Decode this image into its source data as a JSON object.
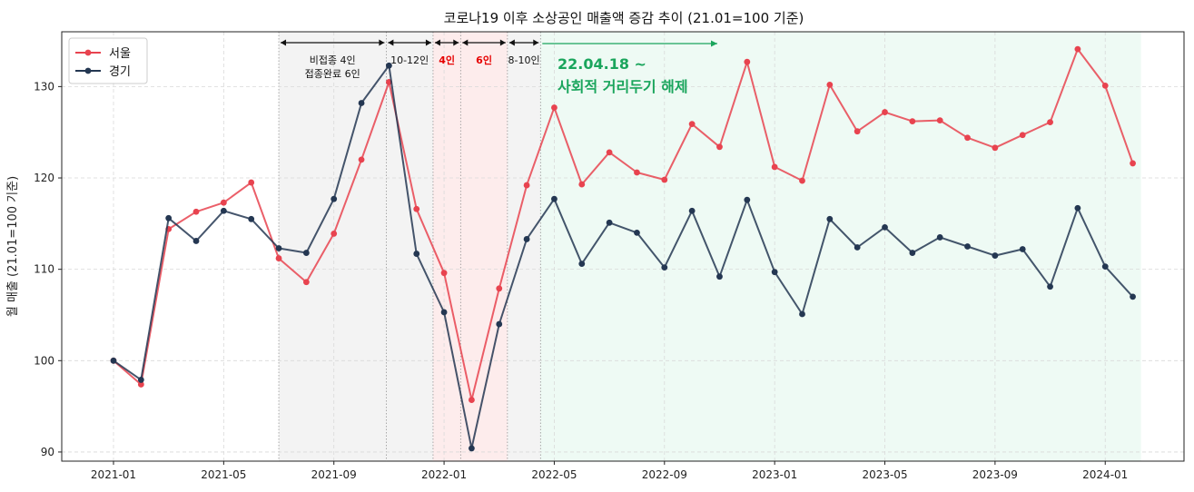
{
  "chart_data": {
    "type": "line",
    "title": "코로나19 이후 소상공인 매출액 증감 추이 (21.01=100 기준)",
    "xlabel": "",
    "ylabel": "월 매출 (21.01=100 기준)",
    "ylim": [
      89,
      136
    ],
    "yticks": [
      90,
      100,
      110,
      120,
      130
    ],
    "xticks": [
      "2021-01",
      "2021-05",
      "2021-09",
      "2022-01",
      "2022-05",
      "2022-09",
      "2023-01",
      "2023-05",
      "2023-09",
      "2024-01"
    ],
    "grid": true,
    "legend_position": "top-left",
    "x": [
      "2021-01",
      "2021-02",
      "2021-03",
      "2021-04",
      "2021-05",
      "2021-06",
      "2021-07",
      "2021-08",
      "2021-09",
      "2021-10",
      "2021-11",
      "2021-12",
      "2022-01",
      "2022-02",
      "2022-03",
      "2022-04",
      "2022-05",
      "2022-06",
      "2022-07",
      "2022-08",
      "2022-09",
      "2022-10",
      "2022-11",
      "2022-12",
      "2023-01",
      "2023-02",
      "2023-03",
      "2023-04",
      "2023-05",
      "2023-06",
      "2023-07",
      "2023-08",
      "2023-09",
      "2023-10",
      "2023-11",
      "2023-12",
      "2024-01",
      "2024-02"
    ],
    "series": [
      {
        "name": "서울",
        "color": "#e8434f",
        "values": [
          100,
          97.4,
          114.4,
          116.3,
          117.3,
          119.5,
          111.2,
          108.6,
          113.9,
          122.0,
          130.5,
          116.6,
          109.6,
          95.7,
          107.9,
          119.2,
          127.7,
          119.3,
          122.8,
          120.6,
          119.8,
          125.9,
          123.4,
          132.7,
          121.2,
          119.7,
          130.2,
          125.1,
          127.2,
          126.2,
          126.3,
          124.4,
          123.3,
          124.7,
          126.1,
          134.1,
          130.1,
          121.6
        ]
      },
      {
        "name": "경기",
        "color": "#243752",
        "values": [
          100,
          97.9,
          115.6,
          113.1,
          116.4,
          115.5,
          112.3,
          111.8,
          117.7,
          128.2,
          132.3,
          111.7,
          105.3,
          90.4,
          104.0,
          113.3,
          117.7,
          110.6,
          115.1,
          114.0,
          110.2,
          116.4,
          109.2,
          117.6,
          109.7,
          105.1,
          115.5,
          112.4,
          114.6,
          111.8,
          113.5,
          112.5,
          111.5,
          112.2,
          108.1,
          116.7,
          110.3,
          107.0
        ]
      }
    ],
    "regions": [
      {
        "from": 6,
        "to": 9.9,
        "color": "#f3f3f3",
        "label_lines": [
          "비접종 4인",
          "접종완료 6인"
        ],
        "label_color": "#111111"
      },
      {
        "from": 9.9,
        "to": 11.6,
        "color": "#f3f3f3",
        "label_lines": [
          "10-12인"
        ],
        "label_color": "#111111"
      },
      {
        "from": 11.6,
        "to": 12.6,
        "color": "#fdecec",
        "label_lines": [
          "4인"
        ],
        "label_color": "#e60000"
      },
      {
        "from": 12.6,
        "to": 14.3,
        "color": "#fdecec",
        "label_lines": [
          "6인"
        ],
        "label_color": "#e60000"
      },
      {
        "from": 14.3,
        "to": 15.5,
        "color": "#f3f3f3",
        "label_lines": [
          "8-10인"
        ],
        "label_color": "#111111"
      },
      {
        "from": 15.5,
        "to": 37.3,
        "color": "#eefaf4",
        "label_lines": [],
        "label_color": "#1aa55c"
      }
    ],
    "release_annotation": {
      "lines": [
        "22.04.18 ~",
        "사회적 거리두기 해제"
      ],
      "color": "#1aa55c"
    }
  }
}
